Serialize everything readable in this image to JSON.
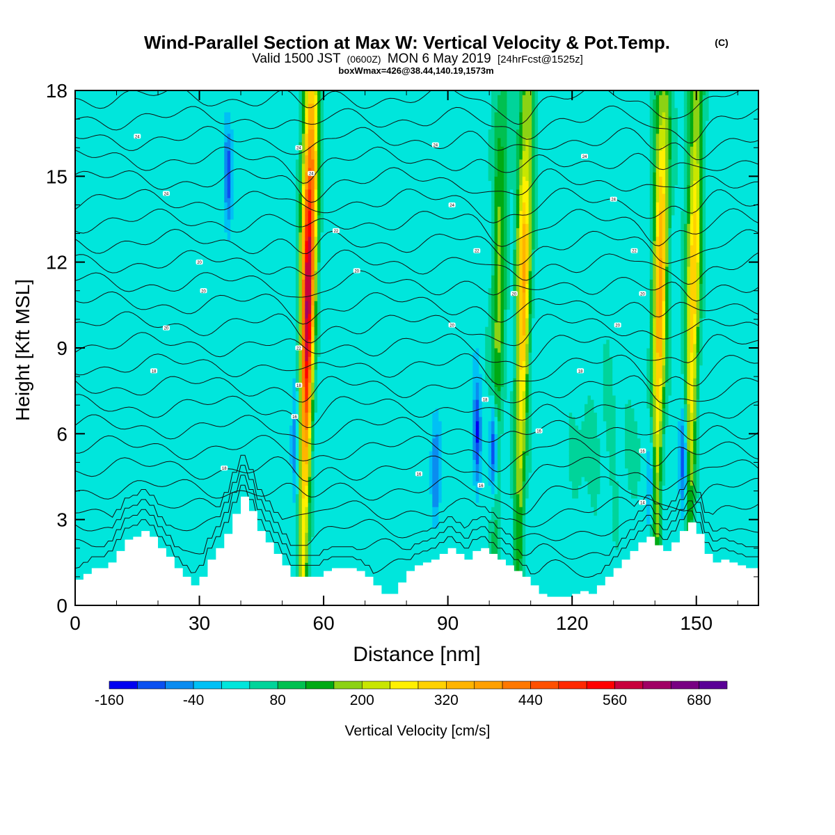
{
  "chart_data": {
    "type": "heatmap",
    "title": "Wind-Parallel Section at Max W: Vertical Velocity & Pot.Temp.",
    "title_mark": "(C)",
    "subtitle_pre": "Valid 1500 JST",
    "subtitle_zulu": "(0600Z)",
    "subtitle_main": "MON 6 May 2019",
    "subtitle_fcst": "[24hrFcst@1525z]",
    "subtitle2": "boxWmax=426@38.44,140.19,1573m",
    "xlabel": "Distance [nm]",
    "ylabel": "Height [Kft MSL]",
    "xlim": [
      0,
      165
    ],
    "ylim": [
      0,
      18
    ],
    "xticks": [
      0,
      30,
      60,
      90,
      120,
      150
    ],
    "yticks": [
      0,
      3,
      6,
      9,
      12,
      15,
      18
    ],
    "colorbar": {
      "label": "Vertical Velocity [cm/s]",
      "levels": [
        -160,
        -120,
        -80,
        -40,
        0,
        40,
        80,
        120,
        160,
        200,
        240,
        280,
        320,
        360,
        400,
        440,
        480,
        520,
        560,
        600,
        640,
        680,
        720
      ],
      "tick_labels": [
        -160,
        -40,
        80,
        200,
        320,
        440,
        560,
        680
      ],
      "colors": [
        "#0000f0",
        "#0a50f0",
        "#0a8cf0",
        "#00c0f5",
        "#00e6dc",
        "#00d49a",
        "#00c050",
        "#00aa14",
        "#8cd214",
        "#c8e600",
        "#fff000",
        "#ffd200",
        "#ffb400",
        "#ffa000",
        "#ff7800",
        "#ff5000",
        "#ff2800",
        "#ff0000",
        "#c8003c",
        "#a00064",
        "#780082",
        "#5a0096"
      ]
    },
    "updraft_cores": [
      {
        "x": 56,
        "peak": 600,
        "z_top": 18
      },
      {
        "x": 102,
        "peak": 160,
        "z_top": 18
      },
      {
        "x": 108,
        "peak": 330,
        "z_top": 18
      },
      {
        "x": 141,
        "peak": 350,
        "z_top": 18
      },
      {
        "x": 149,
        "peak": 300,
        "z_top": 18
      }
    ],
    "downdraft_cores": [
      {
        "x": 53,
        "z": 5.5,
        "min": -80
      },
      {
        "x": 87,
        "z": 4.5,
        "min": -80
      },
      {
        "x": 97,
        "z": 6,
        "min": -120
      },
      {
        "x": 101,
        "z": 5.5,
        "min": -160
      },
      {
        "x": 139,
        "z": 4.5,
        "min": -80
      },
      {
        "x": 147,
        "z": 5,
        "min": -120
      },
      {
        "x": 37,
        "z": 15,
        "min": -80
      }
    ],
    "terrain": {
      "x": [
        0,
        2,
        4,
        6,
        8,
        10,
        12,
        14,
        16,
        18,
        20,
        22,
        24,
        26,
        28,
        30,
        32,
        34,
        36,
        38,
        40,
        42,
        44,
        46,
        48,
        50,
        52,
        54,
        56,
        58,
        60,
        62,
        64,
        66,
        68,
        70,
        72,
        74,
        76,
        78,
        80,
        82,
        84,
        86,
        88,
        90,
        92,
        94,
        96,
        98,
        100,
        102,
        104,
        106,
        108,
        110,
        112,
        114,
        116,
        118,
        120,
        122,
        124,
        126,
        128,
        130,
        132,
        134,
        136,
        138,
        140,
        142,
        144,
        146,
        148,
        150,
        152,
        154,
        156,
        158,
        160,
        162,
        165
      ],
      "z": [
        0.9,
        1.1,
        1.3,
        1.3,
        1.5,
        1.9,
        2.3,
        2.4,
        2.6,
        2.4,
        2.0,
        1.7,
        1.3,
        1.0,
        0.7,
        1.0,
        1.6,
        2.0,
        2.5,
        3.2,
        3.8,
        3.3,
        2.6,
        2.2,
        1.8,
        1.4,
        1.0,
        1.0,
        1.0,
        1.0,
        1.2,
        1.3,
        1.3,
        1.3,
        1.2,
        1.0,
        0.7,
        0.4,
        0.4,
        0.8,
        1.2,
        1.4,
        1.5,
        1.6,
        1.8,
        2.0,
        1.8,
        1.6,
        1.9,
        2.0,
        1.8,
        1.6,
        1.4,
        1.2,
        1.0,
        0.7,
        0.4,
        0.3,
        0.3,
        0.3,
        0.4,
        0.5,
        0.4,
        0.7,
        1.0,
        1.3,
        1.6,
        1.9,
        2.2,
        2.4,
        2.1,
        1.9,
        2.2,
        2.6,
        2.9,
        2.5,
        1.8,
        1.5,
        1.6,
        1.5,
        1.4,
        1.3,
        1.3
      ]
    },
    "theta_contour_labels": [
      {
        "x": 15,
        "z": 16.4,
        "text": "24"
      },
      {
        "x": 22,
        "z": 14.4,
        "text": "24"
      },
      {
        "x": 30,
        "z": 12.0,
        "text": "20"
      },
      {
        "x": 31,
        "z": 11.0,
        "text": "20"
      },
      {
        "x": 22,
        "z": 9.7,
        "text": "20"
      },
      {
        "x": 19,
        "z": 8.2,
        "text": "18"
      },
      {
        "x": 36,
        "z": 4.8,
        "text": "18"
      },
      {
        "x": 54,
        "z": 16.0,
        "text": "24"
      },
      {
        "x": 57,
        "z": 15.1,
        "text": "24"
      },
      {
        "x": 63,
        "z": 13.1,
        "text": "22"
      },
      {
        "x": 68,
        "z": 11.7,
        "text": "20"
      },
      {
        "x": 54,
        "z": 9.0,
        "text": "22"
      },
      {
        "x": 54,
        "z": 7.7,
        "text": "18"
      },
      {
        "x": 53,
        "z": 6.6,
        "text": "16"
      },
      {
        "x": 87,
        "z": 16.1,
        "text": "24"
      },
      {
        "x": 91,
        "z": 14.0,
        "text": "24"
      },
      {
        "x": 97,
        "z": 12.4,
        "text": "22"
      },
      {
        "x": 91,
        "z": 9.8,
        "text": "20"
      },
      {
        "x": 99,
        "z": 7.2,
        "text": "18"
      },
      {
        "x": 83,
        "z": 4.6,
        "text": "16"
      },
      {
        "x": 98,
        "z": 4.2,
        "text": "16"
      },
      {
        "x": 106,
        "z": 10.9,
        "text": "20"
      },
      {
        "x": 112,
        "z": 6.1,
        "text": "16"
      },
      {
        "x": 123,
        "z": 15.7,
        "text": "24"
      },
      {
        "x": 130,
        "z": 14.2,
        "text": "24"
      },
      {
        "x": 135,
        "z": 12.4,
        "text": "22"
      },
      {
        "x": 131,
        "z": 9.8,
        "text": "20"
      },
      {
        "x": 122,
        "z": 8.2,
        "text": "18"
      },
      {
        "x": 137,
        "z": 10.9,
        "text": "20"
      },
      {
        "x": 137,
        "z": 5.4,
        "text": "16"
      },
      {
        "x": 137,
        "z": 3.6,
        "text": "14"
      }
    ]
  }
}
